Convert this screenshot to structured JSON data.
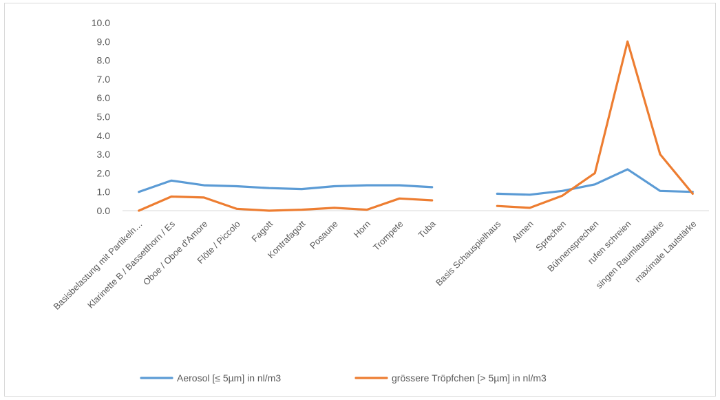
{
  "chart_data": {
    "type": "line",
    "categories": [
      "Basisbelastung mit Partikeln…",
      "Klarinette B / Bassetthorn / Es",
      "Oboe / Oboe d'Amore",
      "Flöte / Piccolo",
      "Fagott",
      "Kontrafagott",
      "Posaune",
      "Horn",
      "Trompete",
      "Tuba",
      "",
      "Basis Schauspielhaus",
      "Atmen",
      "Sprechen",
      "Bühnensprechen",
      "rufen schreien",
      "singen Raumlautstärke",
      "maximale Lautstärke"
    ],
    "series": [
      {
        "name": "Aerosol [≤ 5µm] in nl/m3",
        "color": "#5b9bd5",
        "values": [
          1.0,
          1.6,
          1.35,
          1.3,
          1.2,
          1.15,
          1.3,
          1.35,
          1.35,
          1.25,
          null,
          0.9,
          0.85,
          1.05,
          1.4,
          2.2,
          1.05,
          1.0
        ]
      },
      {
        "name": "grössere Tröpfchen [> 5µm] in nl/m3",
        "color": "#ed7d31",
        "values": [
          0.0,
          0.75,
          0.7,
          0.1,
          0.0,
          0.05,
          0.15,
          0.05,
          0.65,
          0.55,
          null,
          0.25,
          0.15,
          0.8,
          2.0,
          9.0,
          3.0,
          0.9
        ]
      }
    ],
    "yticks": [
      "0.0",
      "1.0",
      "2.0",
      "3.0",
      "4.0",
      "5.0",
      "6.0",
      "7.0",
      "8.0",
      "9.0",
      "10.0"
    ],
    "ylim": [
      0,
      10
    ],
    "grid": false,
    "legend": "bottom",
    "title": "",
    "xlabel": "",
    "ylabel": ""
  }
}
